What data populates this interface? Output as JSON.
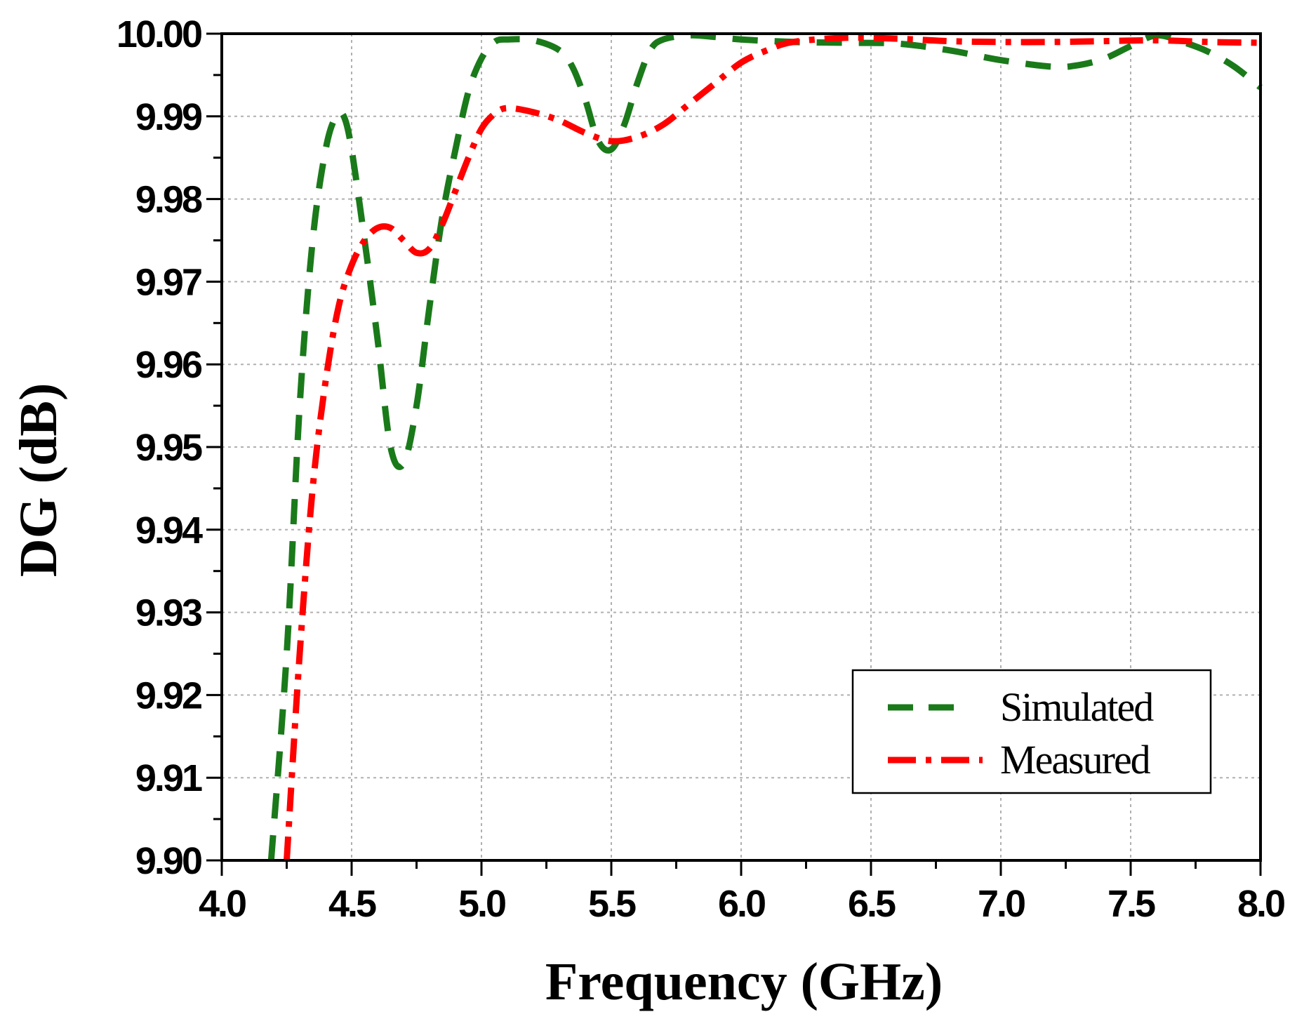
{
  "chart_data": {
    "type": "line",
    "title": "",
    "xlabel": "Frequency (GHz)",
    "ylabel": "DG (dB)",
    "xlim": [
      4.0,
      8.0
    ],
    "ylim": [
      9.9,
      10.0
    ],
    "x_ticks": [
      "4.0",
      "4.5",
      "5.0",
      "5.5",
      "6.0",
      "6.5",
      "7.0",
      "7.5",
      "8.0"
    ],
    "y_ticks": [
      "9.90",
      "9.91",
      "9.92",
      "9.93",
      "9.94",
      "9.95",
      "9.96",
      "9.97",
      "9.98",
      "9.99",
      "10.00"
    ],
    "grid": true,
    "legend_position": "bottom-right",
    "series": [
      {
        "name": "Simulated",
        "color": "#1a7a1a",
        "style": "dashed",
        "points": [
          [
            4.19,
            9.9
          ],
          [
            4.25,
            9.925
          ],
          [
            4.3,
            9.955
          ],
          [
            4.35,
            9.975
          ],
          [
            4.4,
            9.986
          ],
          [
            4.44,
            9.99
          ],
          [
            4.47,
            9.99
          ],
          [
            4.5,
            9.986
          ],
          [
            4.55,
            9.975
          ],
          [
            4.6,
            9.963
          ],
          [
            4.65,
            9.95
          ],
          [
            4.7,
            9.948
          ],
          [
            4.75,
            9.955
          ],
          [
            4.8,
            9.967
          ],
          [
            4.85,
            9.978
          ],
          [
            4.9,
            9.986
          ],
          [
            4.95,
            9.993
          ],
          [
            5.0,
            9.997
          ],
          [
            5.05,
            9.999
          ],
          [
            5.1,
            9.9993
          ],
          [
            5.2,
            9.9992
          ],
          [
            5.3,
            9.998
          ],
          [
            5.35,
            9.996
          ],
          [
            5.4,
            9.992
          ],
          [
            5.45,
            9.987
          ],
          [
            5.5,
            9.986
          ],
          [
            5.55,
            9.989
          ],
          [
            5.6,
            9.994
          ],
          [
            5.65,
            9.998
          ],
          [
            5.7,
            9.9993
          ],
          [
            5.8,
            9.9998
          ],
          [
            5.9,
            9.9996
          ],
          [
            6.0,
            9.9993
          ],
          [
            6.2,
            9.999
          ],
          [
            6.4,
            9.9989
          ],
          [
            6.6,
            9.9988
          ],
          [
            6.8,
            9.998
          ],
          [
            7.0,
            9.9968
          ],
          [
            7.2,
            9.996
          ],
          [
            7.3,
            9.9962
          ],
          [
            7.4,
            9.997
          ],
          [
            7.5,
            9.9985
          ],
          [
            7.6,
            9.9998
          ],
          [
            7.7,
            9.999
          ],
          [
            7.8,
            9.9978
          ],
          [
            7.9,
            9.996
          ],
          [
            8.0,
            9.9935
          ]
        ]
      },
      {
        "name": "Measured",
        "color": "#ff0000",
        "style": "dash-dot",
        "points": [
          [
            4.25,
            9.9
          ],
          [
            4.3,
            9.925
          ],
          [
            4.35,
            9.945
          ],
          [
            4.4,
            9.958
          ],
          [
            4.45,
            9.967
          ],
          [
            4.5,
            9.972
          ],
          [
            4.55,
            9.975
          ],
          [
            4.6,
            9.9765
          ],
          [
            4.65,
            9.9765
          ],
          [
            4.7,
            9.975
          ],
          [
            4.75,
            9.9735
          ],
          [
            4.8,
            9.974
          ],
          [
            4.85,
            9.977
          ],
          [
            4.9,
            9.981
          ],
          [
            4.95,
            9.985
          ],
          [
            5.0,
            9.9885
          ],
          [
            5.05,
            9.9903
          ],
          [
            5.1,
            9.991
          ],
          [
            5.2,
            9.9905
          ],
          [
            5.3,
            9.9895
          ],
          [
            5.4,
            9.988
          ],
          [
            5.5,
            9.987
          ],
          [
            5.6,
            9.9875
          ],
          [
            5.7,
            9.989
          ],
          [
            5.8,
            9.9915
          ],
          [
            5.9,
            9.994
          ],
          [
            6.0,
            9.9965
          ],
          [
            6.1,
            9.998
          ],
          [
            6.2,
            9.999
          ],
          [
            6.4,
            9.9995
          ],
          [
            6.6,
            9.9994
          ],
          [
            6.8,
            9.9991
          ],
          [
            7.0,
            9.999
          ],
          [
            7.2,
            9.999
          ],
          [
            7.4,
            9.9991
          ],
          [
            7.6,
            9.9992
          ],
          [
            7.8,
            9.999
          ],
          [
            8.0,
            9.9989
          ]
        ]
      }
    ]
  }
}
